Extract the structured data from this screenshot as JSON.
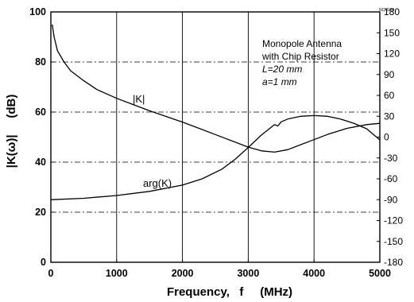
{
  "tag": "NCH120",
  "chart_data": {
    "type": "line",
    "xlabel": "Frequency,   f     (MHz)",
    "ylabel_left": "|K(ω)|     (dB)",
    "xlim": [
      0,
      5000
    ],
    "ylim_left": [
      0,
      100
    ],
    "ylim_right": [
      -180,
      180
    ],
    "x_ticks": [
      "0",
      "1000",
      "2000",
      "3000",
      "4000",
      "5000"
    ],
    "y_ticks_left": [
      "0",
      "20",
      "40",
      "60",
      "80",
      "100"
    ],
    "y_ticks_right": [
      "-180",
      "-150",
      "-120",
      "-90",
      "-60",
      "-30",
      "0",
      "30",
      "60",
      "90",
      "120",
      "150",
      "180"
    ],
    "annotation": {
      "line1": "Monopole Antenna",
      "line2": "with Chip Resistor",
      "line3": "L=20 mm",
      "line4": "a=1 mm"
    },
    "series": [
      {
        "name": "|K|",
        "axis": "left",
        "x": [
          20,
          50,
          100,
          200,
          300,
          500,
          700,
          1000,
          1500,
          2000,
          2500,
          3000,
          3200,
          3400,
          3600,
          3800,
          4000,
          4200,
          4500,
          4800,
          5000
        ],
        "y": [
          95,
          90,
          84.5,
          80,
          76.5,
          72.5,
          69,
          65.5,
          60.5,
          56,
          51,
          46,
          44.5,
          44,
          45,
          47,
          49,
          51,
          53.5,
          55,
          55.5
        ]
      },
      {
        "name": "arg(K)",
        "axis": "right",
        "x": [
          0,
          500,
          1000,
          1500,
          2000,
          2300,
          2600,
          2800,
          3000,
          3200,
          3400,
          3450,
          3500,
          3600,
          3800,
          4000,
          4200,
          4400,
          4600,
          4800,
          5000
        ],
        "y": [
          -90,
          -88,
          -84,
          -78,
          -69,
          -60,
          -46,
          -32,
          -15,
          3,
          18,
          16,
          22,
          26,
          30,
          31,
          30,
          26,
          20,
          12,
          -4
        ]
      }
    ]
  }
}
